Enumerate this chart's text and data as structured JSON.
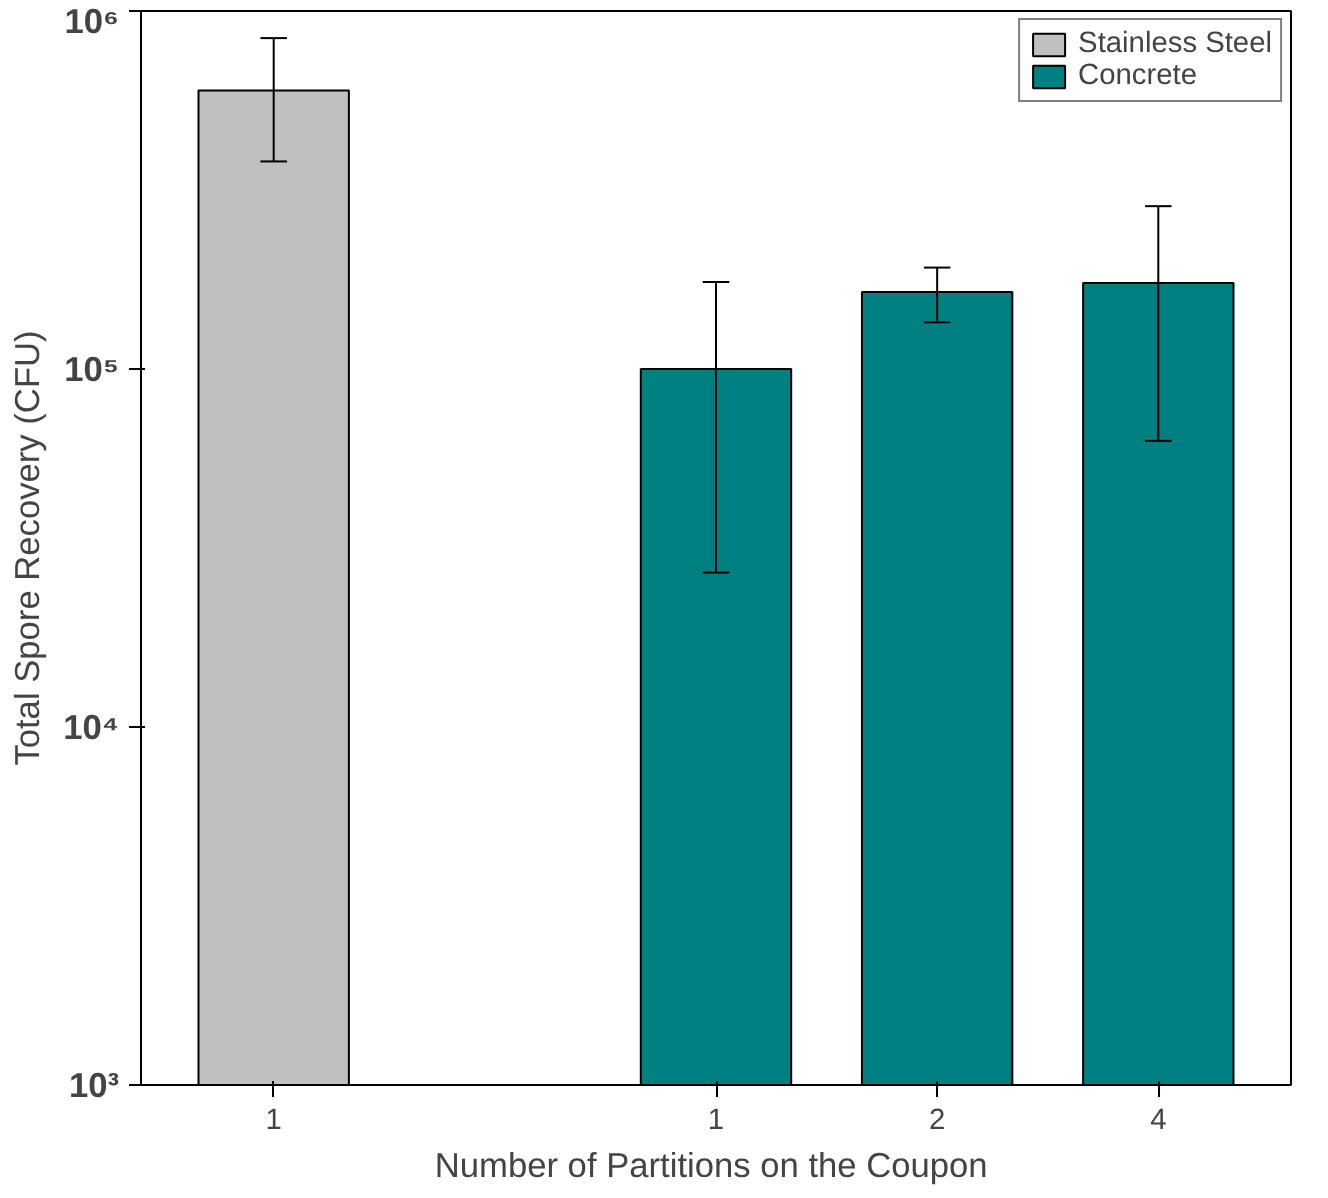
{
  "chart_data": {
    "type": "bar",
    "xlabel": "Number  of Partitions on the Coupon",
    "ylabel": "Total Spore Recovery (CFU)",
    "categories": [
      "1",
      null,
      "1",
      "2",
      "4"
    ],
    "series": [
      {
        "name": "Stainless Steel",
        "color": "#c0c0c0",
        "values": [
          600000,
          null,
          null,
          null,
          null
        ],
        "errors": [
          [
            380000,
            840000
          ],
          null,
          null,
          null,
          null
        ]
      },
      {
        "name": "Concrete",
        "color": "#008080",
        "values": [
          null,
          null,
          100000,
          164000,
          174000
        ],
        "errors": [
          null,
          null,
          [
            27000,
            175000
          ],
          [
            135000,
            192000
          ],
          [
            63000,
            285000
          ]
        ]
      }
    ],
    "log": "y",
    "ylim": [
      1000,
      1000000
    ],
    "yticks": [
      {
        "value": 1000,
        "label": "10³"
      },
      {
        "value": 10000,
        "label": "10⁴"
      },
      {
        "value": 100000,
        "label": "10⁵"
      },
      {
        "value": 1000000,
        "label": "10⁶"
      }
    ],
    "grid": false,
    "legend": "top right"
  }
}
